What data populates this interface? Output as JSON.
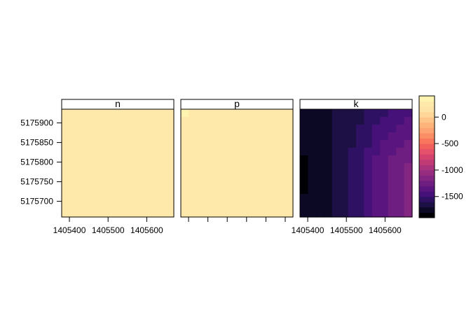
{
  "chart_data": {
    "type": "heatmap",
    "layout": "three raster panels side by side with a shared colour key on the right",
    "x_ticks": [
      1405400,
      1405500,
      1405600
    ],
    "y_ticks": [
      5175700,
      5175750,
      5175800,
      5175850,
      5175900
    ],
    "x_range": [
      1405380,
      1405670
    ],
    "y_range": [
      5175660,
      5175935
    ],
    "x_tick_labels": [
      "1405400",
      "1405500",
      "1405600"
    ],
    "y_tick_labels": [
      "5175700",
      "5175750",
      "5175800",
      "5175850",
      "5175900"
    ],
    "x_tick_label_panels": [
      "n",
      "k"
    ],
    "panels": [
      {
        "title": "n",
        "pattern": "uniform",
        "grid": [
          [
            210
          ]
        ]
      },
      {
        "title": "p",
        "pattern": "uniform with a lighter upper-left corner",
        "grid": [
          [
            300,
            250,
            210,
            210,
            210,
            210,
            210,
            210,
            210,
            210,
            210,
            210,
            210,
            210
          ],
          [
            250,
            210,
            210,
            210,
            210,
            210,
            210,
            210,
            210,
            210,
            210,
            210,
            210,
            210
          ],
          [
            210,
            210,
            210,
            210,
            210,
            210,
            210,
            210,
            210,
            210,
            210,
            210,
            210,
            210
          ],
          [
            210,
            210,
            210,
            210,
            210,
            210,
            210,
            210,
            210,
            210,
            210,
            210,
            210,
            210
          ],
          [
            210,
            210,
            210,
            210,
            210,
            210,
            210,
            210,
            210,
            210,
            210,
            210,
            210,
            210
          ],
          [
            210,
            210,
            210,
            210,
            210,
            210,
            210,
            210,
            210,
            210,
            210,
            210,
            210,
            210
          ],
          [
            210,
            210,
            210,
            210,
            210,
            210,
            210,
            210,
            210,
            210,
            210,
            210,
            210,
            210
          ],
          [
            210,
            210,
            210,
            210,
            210,
            210,
            210,
            210,
            210,
            210,
            210,
            210,
            210,
            210
          ],
          [
            210,
            210,
            210,
            210,
            210,
            210,
            210,
            210,
            210,
            210,
            210,
            210,
            210,
            210
          ],
          [
            210,
            210,
            210,
            210,
            210,
            210,
            210,
            210,
            210,
            210,
            210,
            210,
            210,
            210
          ],
          [
            210,
            210,
            210,
            210,
            210,
            210,
            210,
            210,
            210,
            210,
            210,
            210,
            210,
            210
          ],
          [
            210,
            210,
            210,
            210,
            210,
            210,
            210,
            210,
            210,
            210,
            210,
            210,
            210,
            210
          ],
          [
            210,
            210,
            210,
            210,
            210,
            210,
            210,
            210,
            210,
            210,
            210,
            210,
            210,
            210
          ],
          [
            210,
            210,
            210,
            210,
            210,
            210,
            210,
            210,
            210,
            210,
            210,
            210,
            210,
            210
          ]
        ]
      },
      {
        "title": "k",
        "pattern": "values increase from left (about -1850) to right (about -1050)",
        "grid": [
          [
            -1750,
            -1750,
            -1750,
            -1750,
            -1650,
            -1650,
            -1650,
            -1650,
            -1550,
            -1550,
            -1550,
            -1450,
            -1450,
            -1450
          ],
          [
            -1750,
            -1750,
            -1750,
            -1750,
            -1650,
            -1650,
            -1650,
            -1650,
            -1550,
            -1550,
            -1450,
            -1450,
            -1450,
            -1350
          ],
          [
            -1750,
            -1750,
            -1750,
            -1750,
            -1650,
            -1650,
            -1650,
            -1550,
            -1550,
            -1450,
            -1450,
            -1450,
            -1350,
            -1350
          ],
          [
            -1750,
            -1750,
            -1750,
            -1750,
            -1650,
            -1650,
            -1650,
            -1550,
            -1550,
            -1450,
            -1450,
            -1350,
            -1350,
            -1350
          ],
          [
            -1750,
            -1750,
            -1750,
            -1750,
            -1650,
            -1650,
            -1650,
            -1550,
            -1550,
            -1450,
            -1350,
            -1350,
            -1350,
            -1250
          ],
          [
            -1750,
            -1750,
            -1750,
            -1750,
            -1650,
            -1650,
            -1550,
            -1550,
            -1450,
            -1450,
            -1350,
            -1350,
            -1250,
            -1250
          ],
          [
            -1850,
            -1750,
            -1750,
            -1750,
            -1650,
            -1650,
            -1550,
            -1550,
            -1450,
            -1350,
            -1350,
            -1250,
            -1250,
            -1250
          ],
          [
            -1850,
            -1750,
            -1750,
            -1750,
            -1650,
            -1650,
            -1550,
            -1550,
            -1450,
            -1350,
            -1350,
            -1250,
            -1250,
            -1150
          ],
          [
            -1850,
            -1750,
            -1750,
            -1750,
            -1650,
            -1650,
            -1550,
            -1550,
            -1450,
            -1350,
            -1350,
            -1250,
            -1250,
            -1150
          ],
          [
            -1850,
            -1750,
            -1750,
            -1750,
            -1650,
            -1650,
            -1550,
            -1550,
            -1450,
            -1350,
            -1350,
            -1250,
            -1250,
            -1150
          ],
          [
            -1850,
            -1750,
            -1750,
            -1750,
            -1650,
            -1650,
            -1550,
            -1550,
            -1450,
            -1350,
            -1350,
            -1250,
            -1250,
            -1150
          ],
          [
            -1750,
            -1750,
            -1750,
            -1750,
            -1650,
            -1650,
            -1550,
            -1550,
            -1450,
            -1350,
            -1350,
            -1250,
            -1250,
            -1150
          ],
          [
            -1750,
            -1750,
            -1750,
            -1750,
            -1650,
            -1650,
            -1550,
            -1550,
            -1450,
            -1350,
            -1350,
            -1250,
            -1250,
            -1150
          ],
          [
            -1750,
            -1750,
            -1750,
            -1750,
            -1650,
            -1650,
            -1550,
            -1550,
            -1450,
            -1350,
            -1350,
            -1250,
            -1250,
            -1150
          ]
        ]
      }
    ],
    "colorkey": {
      "range": [
        -1900,
        400
      ],
      "ticks": [
        0,
        -500,
        -1000,
        -1500
      ],
      "tick_labels": [
        "0",
        "-500",
        "-1000",
        "-1500"
      ],
      "breaks": [
        -1900,
        -1800,
        -1700,
        -1600,
        -1500,
        -1400,
        -1300,
        -1200,
        -1100,
        -1000,
        -900,
        -800,
        -700,
        -600,
        -500,
        -400,
        -300,
        -200,
        -100,
        0,
        100,
        200,
        300,
        400
      ],
      "colors": [
        "#000004",
        "#0b0924",
        "#1c1044",
        "#2f1163",
        "#461279",
        "#5a167e",
        "#6e1e81",
        "#822681",
        "#962c80",
        "#ab337c",
        "#c03a76",
        "#d4436e",
        "#e5506a",
        "#f1605d",
        "#f8765c",
        "#fb8d65",
        "#fda271",
        "#feb37a",
        "#fec589",
        "#fed798",
        "#fee2a6",
        "#fee9aa",
        "#fef4b0"
      ]
    },
    "grid": false,
    "legend_position": "right"
  }
}
